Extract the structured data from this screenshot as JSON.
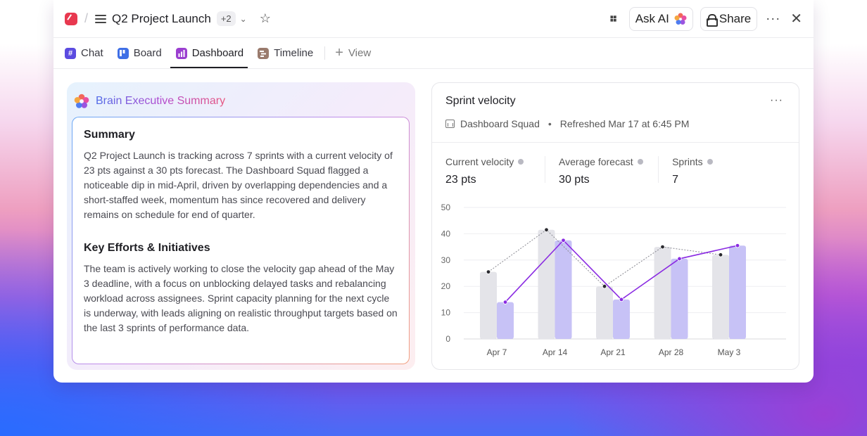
{
  "header": {
    "separator": "/",
    "title": "Q2 Project Launch",
    "extra_count": "+2",
    "ask_ai_label": "Ask AI",
    "share_label": "Share"
  },
  "tabs": [
    {
      "label": "Chat",
      "icon": "hash-icon",
      "color": "#5b4be0"
    },
    {
      "label": "Board",
      "icon": "board-icon",
      "color": "#3f6fe6"
    },
    {
      "label": "Dashboard",
      "icon": "dashboard-icon",
      "color": "#9b3fd0",
      "active": true
    },
    {
      "label": "Timeline",
      "icon": "timeline-icon",
      "color": "#9a7b6d"
    },
    {
      "label": "View",
      "icon": "plus-icon"
    }
  ],
  "summary": {
    "title": "Brain Executive Summary",
    "section1_heading": "Summary",
    "section1_text": "Q2 Project Launch is tracking across 7 sprints with a current velocity of 23 pts against a 30 pts forecast. The Dashboard Squad flagged a noticeable dip in mid-April, driven by overlapping dependencies and a short-staffed week, momentum has since recovered and delivery remains on schedule for end of quarter.",
    "section2_heading": "Key Efforts & Initiatives",
    "section2_text": "The team is actively working to close the velocity gap ahead of the May 3 deadline, with a focus on unblocking delayed tasks and rebalancing workload across assignees. Sprint capacity planning for the next cycle is underway, with leads aligning on realistic throughput targets based on the last 3 sprints of performance data."
  },
  "velocity": {
    "title": "Sprint velocity",
    "team": "Dashboard Squad",
    "refreshed": "Refreshed Mar 17 at 6:45 PM",
    "metrics": [
      {
        "label": "Current velocity",
        "value": "23 pts"
      },
      {
        "label": "Average forecast",
        "value": "30 pts"
      },
      {
        "label": "Sprints",
        "value": "7"
      }
    ]
  },
  "chart_data": {
    "type": "bar",
    "categories": [
      "Apr 7",
      "Apr 14",
      "Apr 21",
      "Apr 28",
      "May 3"
    ],
    "ylim": [
      0,
      50
    ],
    "yticks": [
      0,
      10,
      20,
      30,
      40,
      50
    ],
    "grid": true,
    "series": [
      {
        "values": [
          25.5,
          41.5,
          20,
          35,
          32
        ],
        "color": "#e4e4e9",
        "line_color": "#8a8a92",
        "line_style": "dotted"
      },
      {
        "values": [
          14,
          37.5,
          15,
          30.5,
          35.5
        ],
        "color": "#c7c2f6",
        "line_color": "#8a2be2",
        "line_style": "solid"
      }
    ]
  }
}
